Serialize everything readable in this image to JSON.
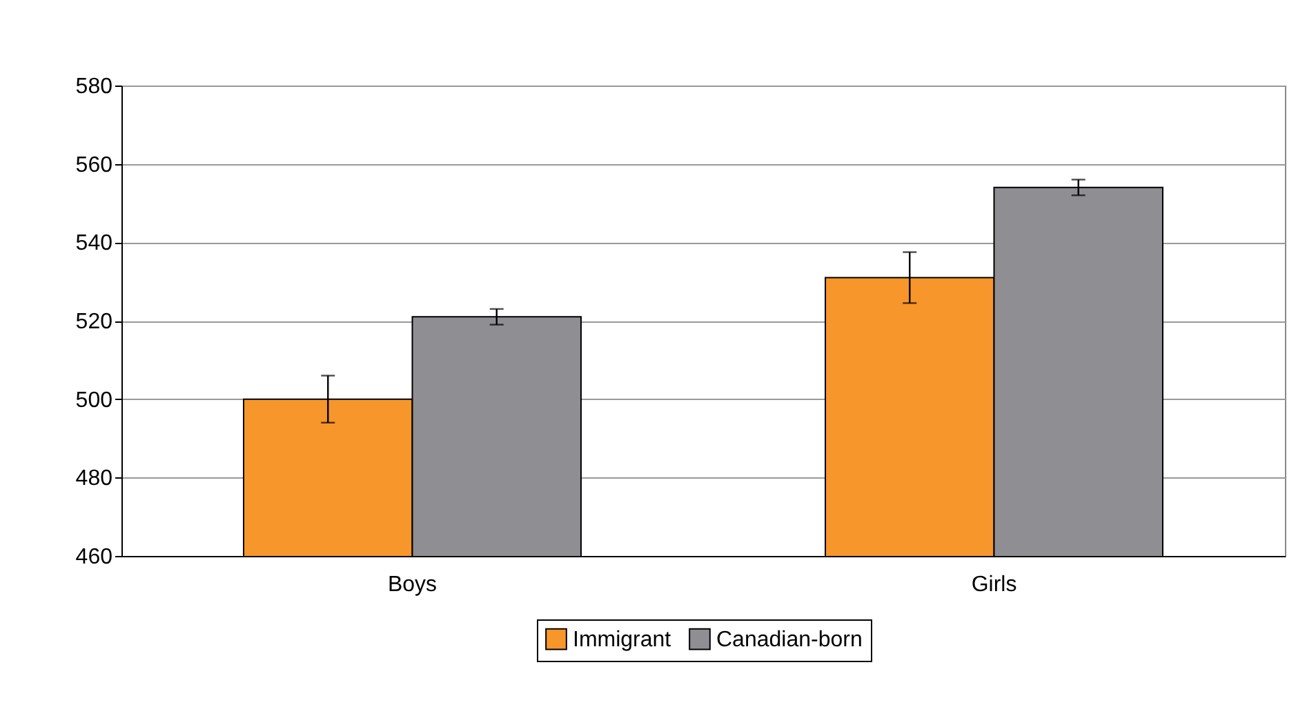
{
  "chart_data": {
    "type": "bar",
    "categories": [
      "Boys",
      "Girls"
    ],
    "series": [
      {
        "name": "Immigrant",
        "color": "#f7962b",
        "values": [
          500,
          531
        ],
        "errors": [
          6,
          6.5
        ]
      },
      {
        "name": "Canadian-born",
        "color": "#8e8e93",
        "values": [
          521,
          554
        ],
        "errors": [
          2,
          2
        ]
      }
    ],
    "ylim": [
      460,
      580
    ],
    "yticks": [
      460,
      480,
      500,
      520,
      540,
      560,
      580
    ],
    "grid": "y",
    "legend": "bottom"
  }
}
